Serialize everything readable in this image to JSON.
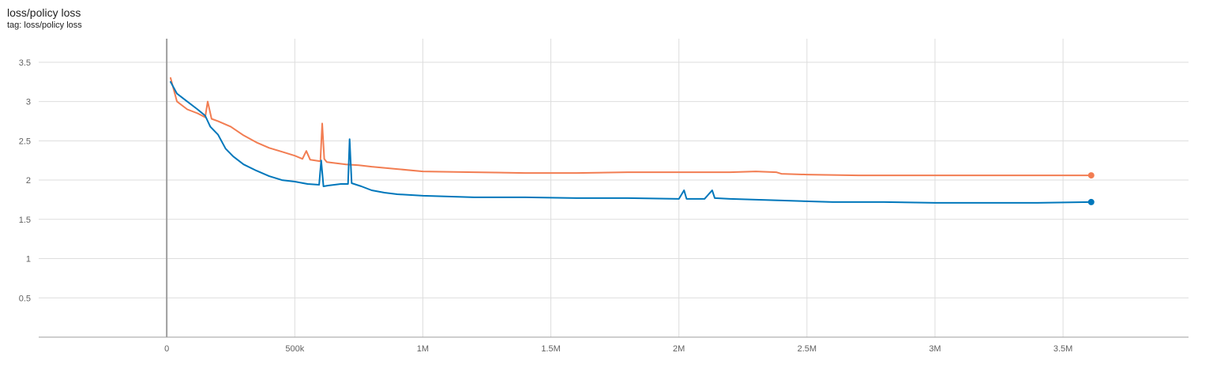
{
  "card": {
    "title": "loss/policy loss",
    "subtitle": "tag: loss/policy loss"
  },
  "colors": {
    "grid": "#dddddd",
    "axis": "#9e9e9e",
    "zero_line": "#9e9e9e"
  },
  "chart_data": {
    "type": "line",
    "title": "loss/policy loss",
    "xlabel": "",
    "ylabel": "",
    "xlim": [
      -500000,
      3990000
    ],
    "ylim": [
      0,
      3.8
    ],
    "grid": true,
    "x_ticks": [
      0,
      500000,
      1000000,
      1500000,
      2000000,
      2500000,
      3000000,
      3500000
    ],
    "x_tick_labels": [
      "0",
      "500k",
      "1M",
      "1.5M",
      "2M",
      "2.5M",
      "3M",
      "3.5M"
    ],
    "y_ticks": [
      0.5,
      1,
      1.5,
      2,
      2.5,
      3,
      3.5
    ],
    "y_tick_labels": [
      "0.5",
      "1",
      "1.5",
      "2",
      "2.5",
      "3",
      "3.5"
    ],
    "series": [
      {
        "color": "#f27d52",
        "x": [
          15000,
          40000,
          80000,
          120000,
          150000,
          160000,
          175000,
          200000,
          250000,
          300000,
          350000,
          400000,
          450000,
          500000,
          530000,
          545000,
          560000,
          580000,
          600000,
          607000,
          615000,
          625000,
          650000,
          700000,
          750000,
          800000,
          900000,
          1000000,
          1200000,
          1400000,
          1600000,
          1800000,
          2000000,
          2200000,
          2300000,
          2380000,
          2400000,
          2500000,
          2700000,
          2900000,
          3100000,
          3300000,
          3500000,
          3610000
        ],
        "values": [
          3.3,
          3.0,
          2.9,
          2.85,
          2.8,
          3.0,
          2.78,
          2.75,
          2.68,
          2.57,
          2.48,
          2.41,
          2.36,
          2.31,
          2.27,
          2.37,
          2.26,
          2.25,
          2.24,
          2.72,
          2.27,
          2.23,
          2.22,
          2.2,
          2.19,
          2.17,
          2.14,
          2.11,
          2.1,
          2.09,
          2.09,
          2.1,
          2.1,
          2.1,
          2.11,
          2.1,
          2.08,
          2.07,
          2.06,
          2.06,
          2.06,
          2.06,
          2.06,
          2.06
        ]
      },
      {
        "color": "#0077bb",
        "x": [
          15000,
          40000,
          80000,
          120000,
          150000,
          170000,
          200000,
          230000,
          260000,
          300000,
          350000,
          400000,
          450000,
          500000,
          550000,
          595000,
          603000,
          612000,
          630000,
          680000,
          708000,
          714000,
          722000,
          760000,
          800000,
          850000,
          900000,
          1000000,
          1200000,
          1400000,
          1600000,
          1800000,
          2000000,
          2020000,
          2030000,
          2100000,
          2130000,
          2140000,
          2200000,
          2400000,
          2600000,
          2800000,
          3000000,
          3200000,
          3400000,
          3610000
        ],
        "values": [
          3.25,
          3.1,
          3.0,
          2.9,
          2.82,
          2.68,
          2.58,
          2.4,
          2.3,
          2.2,
          2.12,
          2.05,
          2.0,
          1.98,
          1.95,
          1.94,
          2.25,
          1.92,
          1.93,
          1.95,
          1.95,
          2.52,
          1.96,
          1.92,
          1.87,
          1.84,
          1.82,
          1.8,
          1.78,
          1.78,
          1.77,
          1.77,
          1.76,
          1.87,
          1.76,
          1.76,
          1.87,
          1.77,
          1.76,
          1.74,
          1.72,
          1.72,
          1.71,
          1.71,
          1.71,
          1.72
        ]
      }
    ]
  }
}
